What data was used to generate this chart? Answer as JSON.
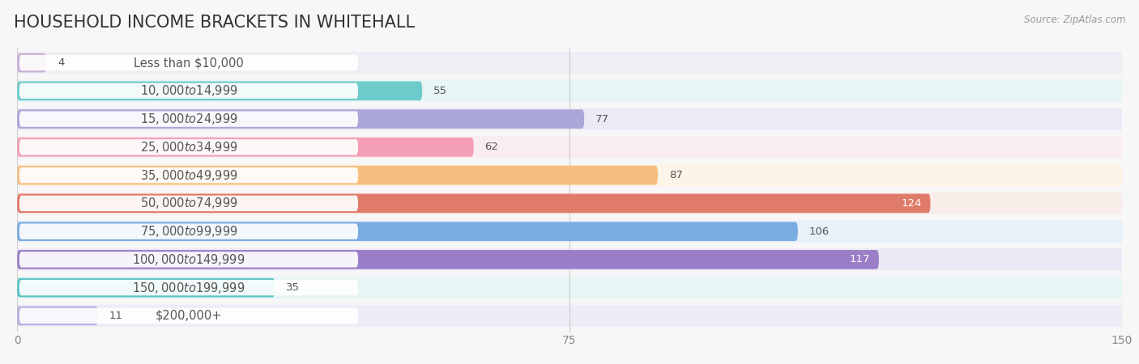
{
  "title": "HOUSEHOLD INCOME BRACKETS IN WHITEHALL",
  "source": "Source: ZipAtlas.com",
  "categories": [
    "Less than $10,000",
    "$10,000 to $14,999",
    "$15,000 to $24,999",
    "$25,000 to $34,999",
    "$35,000 to $49,999",
    "$50,000 to $74,999",
    "$75,000 to $99,999",
    "$100,000 to $149,999",
    "$150,000 to $199,999",
    "$200,000+"
  ],
  "values": [
    4,
    55,
    77,
    62,
    87,
    124,
    106,
    117,
    35,
    11
  ],
  "bar_colors": [
    "#c8afd6",
    "#6dcbcb",
    "#aaa8d8",
    "#f49fb5",
    "#f7bf7f",
    "#e07b6a",
    "#79ace0",
    "#9b7ec8",
    "#5ec3c3",
    "#b8b0e0"
  ],
  "bar_bg_colors": [
    "#eee8f3",
    "#e0f3f3",
    "#e8e8f4",
    "#fce8ee",
    "#fdf0e0",
    "#f8e8e4",
    "#e4eef8",
    "#ece4f4",
    "#e0f2f2",
    "#eceaf8"
  ],
  "xlim": [
    0,
    150
  ],
  "xticks": [
    0,
    75,
    150
  ],
  "background_color": "#f7f7f7",
  "row_bg_colors": [
    "#f0edf4",
    "#e8f5f5",
    "#eceaf6",
    "#faedf2",
    "#fdf4e8",
    "#f9edea",
    "#e8f0f9",
    "#ece8f5",
    "#e6f5f5",
    "#eeedf7"
  ],
  "title_fontsize": 15,
  "label_fontsize": 10.5,
  "value_fontsize": 9.5
}
